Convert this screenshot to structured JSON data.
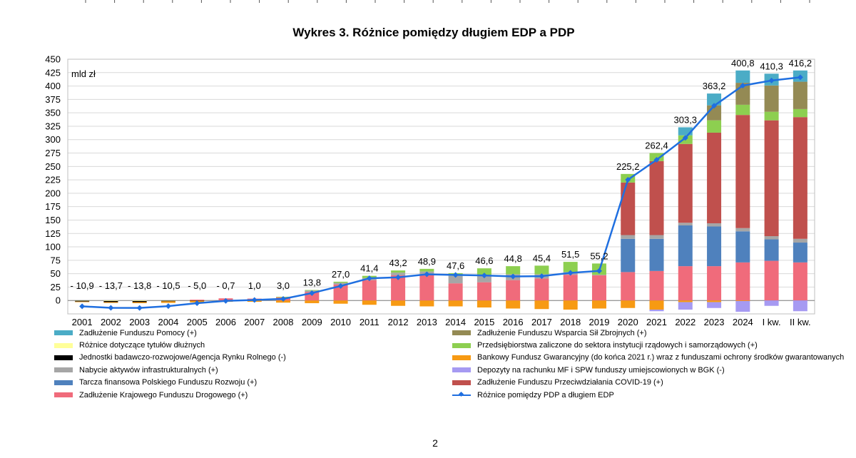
{
  "page_number": "2",
  "chart_data": {
    "type": "bar",
    "title": "Wykres 3. Różnice pomiędzy długiem EDP a PDP",
    "ylabel": "mld zł",
    "ylim": [
      -25,
      450
    ],
    "yticks": [
      0,
      25,
      50,
      75,
      100,
      125,
      150,
      175,
      200,
      225,
      250,
      275,
      300,
      325,
      350,
      375,
      400,
      425,
      450
    ],
    "grid": true,
    "stacked": true,
    "categories": [
      "2001",
      "2002",
      "2003",
      "2004",
      "2005",
      "2006",
      "2007",
      "2008",
      "2009",
      "2010",
      "2011",
      "2012",
      "2013",
      "2014",
      "2015",
      "2016",
      "2017",
      "2018",
      "2019",
      "2020",
      "2021",
      "2022",
      "2023",
      "2024",
      "I kw.\n2025",
      "II kw.\n2025"
    ],
    "series": [
      {
        "name": "Zadłużenie Krajowego Funduszu Drogowego (+)",
        "color": "#f06b7b",
        "values": [
          0,
          0,
          0,
          0,
          1.5,
          4,
          3.5,
          6,
          16,
          30,
          38,
          47,
          49,
          32,
          34,
          38,
          41,
          48,
          47,
          53,
          55,
          64,
          64,
          71,
          74,
          71
        ]
      },
      {
        "name": "Tarcza finansowa Polskiego Funduszu Rozwoju (+)",
        "color": "#4f81bd",
        "values": [
          0,
          0,
          0,
          0,
          0,
          0,
          0,
          0,
          0,
          0,
          0,
          0,
          0,
          0,
          0,
          0,
          0,
          0,
          0,
          62,
          60,
          76,
          74,
          58,
          40,
          37
        ]
      },
      {
        "name": "Nabycie aktywów infrastrukturalnych (+)",
        "color": "#a6a6a6",
        "values": [
          0,
          0,
          0,
          0,
          0,
          0,
          0,
          0,
          2.5,
          3,
          4,
          5,
          5,
          14,
          13,
          11,
          8,
          5,
          1,
          7,
          7,
          5,
          6,
          6,
          6,
          7
        ]
      },
      {
        "name": "Zadłużenie Funduszu Przeciwdziałania COVID-19 (+)",
        "color": "#c0504d",
        "values": [
          0,
          0,
          0,
          0,
          0,
          0,
          0,
          0,
          0,
          0,
          0,
          0,
          0,
          0,
          0,
          0,
          0,
          0,
          0,
          98,
          138,
          147,
          169,
          211,
          216,
          227
        ]
      },
      {
        "name": "Przedsiębiorstwa zaliczone do sektora instytucji rządowych i samorządowych (+)",
        "color": "#8dcf50",
        "values": [
          0,
          0,
          0,
          0,
          0,
          0,
          0,
          1,
          1,
          2,
          4,
          4,
          5,
          5,
          13,
          15,
          16,
          19,
          21,
          16,
          15,
          16,
          23,
          19,
          16,
          15
        ]
      },
      {
        "name": "Zadłużenie Funduszu Wsparcia Sił Zbrojnych (+)",
        "color": "#948a54",
        "values": [
          0,
          0,
          0,
          0,
          0,
          0,
          0,
          0,
          0,
          0,
          0,
          0,
          0,
          0,
          0,
          0,
          0,
          0,
          0,
          0,
          0,
          0,
          28,
          41,
          49,
          51
        ]
      },
      {
        "name": "Zadłużenie Funduszu Pomocy (+)",
        "color": "#4bacc6",
        "values": [
          0,
          0,
          0,
          0,
          0,
          0,
          0,
          0,
          0,
          0,
          0,
          0,
          0,
          0,
          0,
          0,
          0,
          0,
          0,
          0,
          0,
          15,
          22,
          23,
          22,
          21
        ]
      },
      {
        "name": "Różnice dotyczące tytułów dłużnych",
        "color": "#ffff99",
        "values": [
          -0.5,
          -1,
          -1,
          -0.5,
          0,
          0,
          0,
          0,
          0,
          0,
          0,
          0,
          0,
          0,
          0,
          0,
          0,
          0,
          0,
          0,
          0,
          0,
          0,
          0,
          0,
          0
        ]
      },
      {
        "name": "Jednostki badawczo-rozwojowe/Agencja Rynku Rolnego (-)",
        "color": "#000000",
        "values": [
          -1.5,
          -2,
          -2,
          -1,
          -0.5,
          0,
          0,
          0,
          0,
          0,
          0,
          0,
          0,
          0,
          0,
          0,
          0,
          0,
          0,
          0,
          0,
          0,
          0,
          0,
          0,
          0
        ]
      },
      {
        "name": "Bankowy Fundusz Gwarancyjny (do końca 2021 r.) wraz z funduszami ochrony środków gwarantowanych",
        "color": "#f79a13",
        "values": [
          -1,
          -1.5,
          -2,
          -3,
          -3,
          -2.5,
          -2.5,
          -4,
          -5,
          -6,
          -8,
          -10,
          -11,
          -11,
          -13,
          -15,
          -16,
          -17,
          -15,
          -14,
          -17,
          -3,
          -3,
          -1,
          0,
          0
        ]
      },
      {
        "name": "Depozyty na rachunku MF i SPW funduszy umiejscowionych w BGK (-)",
        "color": "#a69af2",
        "values": [
          0,
          0,
          0,
          0,
          0,
          0,
          0,
          0,
          0,
          0,
          0,
          0,
          0,
          0,
          0,
          0,
          0,
          0,
          0,
          0,
          -3,
          -14,
          -11,
          -20,
          -10,
          -20
        ]
      }
    ],
    "line": {
      "name": "Różnice pomiędzy PDP a długiem EDP",
      "color": "#1f6fe0",
      "values": [
        -10.9,
        -13.7,
        -13.8,
        -10.5,
        -5.0,
        -0.7,
        1.0,
        3.0,
        13.8,
        27.0,
        41.4,
        43.2,
        48.9,
        47.6,
        46.6,
        44.8,
        45.4,
        51.5,
        55.2,
        225.2,
        262.4,
        303.3,
        363.2,
        400.8,
        410.3,
        416.2
      ],
      "labels": [
        "- 10,9",
        "- 13,7",
        "- 13,8",
        "- 10,5",
        "- 5,0",
        "- 0,7",
        "1,0",
        "3,0",
        "13,8",
        "27,0",
        "41,4",
        "43,2",
        "48,9",
        "47,6",
        "46,6",
        "44,8",
        "45,4",
        "51,5",
        "55,2",
        "225,2",
        "262,4",
        "303,3",
        "363,2",
        "400,8",
        "410,3",
        "416,2"
      ]
    },
    "legend": {
      "placement": "bottom",
      "left_column": [
        {
          "label": "Zadłużenie Funduszu Pomocy (+)",
          "color": "#4bacc6",
          "kind": "bar"
        },
        {
          "label": "Różnice dotyczące tytułów dłużnych",
          "color": "#ffff99",
          "kind": "bar"
        },
        {
          "label": "Jednostki badawczo-rozwojowe/Agencja Rynku Rolnego (-)",
          "color": "#000000",
          "kind": "bar"
        },
        {
          "label": "Nabycie aktywów infrastrukturalnych (+)",
          "color": "#a6a6a6",
          "kind": "bar"
        },
        {
          "label": "Tarcza finansowa Polskiego Funduszu Rozwoju (+)",
          "color": "#4f81bd",
          "kind": "bar"
        },
        {
          "label": "Zadłużenie Krajowego Funduszu Drogowego (+)",
          "color": "#f06b7b",
          "kind": "bar"
        }
      ],
      "right_column": [
        {
          "label": "Zadłużenie Funduszu Wsparcia Sił Zbrojnych (+)",
          "color": "#948a54",
          "kind": "bar"
        },
        {
          "label": "Przedsiębiorstwa zaliczone do sektora instytucji rządowych i samorządowych (+)",
          "color": "#8dcf50",
          "kind": "bar"
        },
        {
          "label": "Bankowy Fundusz Gwarancyjny (do końca 2021 r.) wraz z funduszami ochrony środków gwarantowanych",
          "color": "#f79a13",
          "kind": "bar"
        },
        {
          "label": "Depozyty na rachunku MF i SPW funduszy umiejscowionych w BGK (-)",
          "color": "#a69af2",
          "kind": "bar"
        },
        {
          "label": "Zadłużenie Funduszu Przeciwdziałania COVID-19 (+)",
          "color": "#c0504d",
          "kind": "bar"
        },
        {
          "label": "Różnice pomiędzy PDP a długiem EDP",
          "color": "#1f6fe0",
          "kind": "line"
        }
      ]
    }
  }
}
